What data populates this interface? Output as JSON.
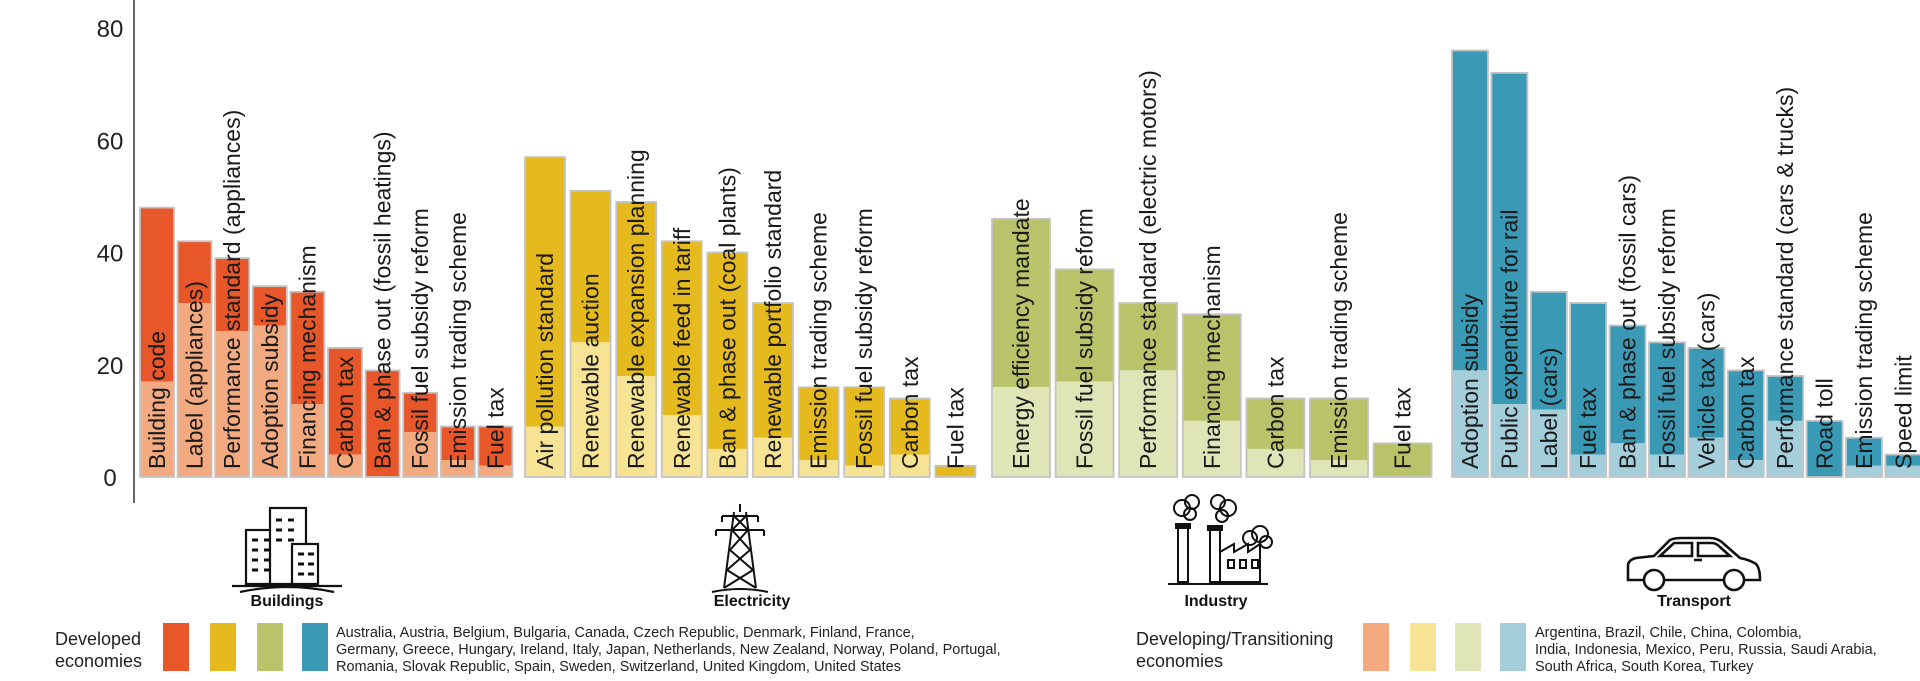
{
  "chart_data": {
    "type": "bar",
    "stacked": true,
    "ylim": [
      0,
      80
    ],
    "yticks": [
      0,
      20,
      40,
      60,
      80
    ],
    "grid": false,
    "series": [
      {
        "name": "Developed economies"
      },
      {
        "name": "Developing/Transitioning economies"
      }
    ],
    "sectors": [
      {
        "name": "Buildings",
        "icon": "buildings-icon",
        "dev_color": "#e8572a",
        "devl_color": "#f3aa80",
        "bars": [
          {
            "label": "Building code",
            "total": 48,
            "developing": 17
          },
          {
            "label": "Label (appliances)",
            "total": 42,
            "developing": 31
          },
          {
            "label": "Performance standard (appliances)",
            "total": 39,
            "developing": 26
          },
          {
            "label": "Adoption subsidy",
            "total": 34,
            "developing": 27
          },
          {
            "label": "Financing mechanism",
            "total": 33,
            "developing": 13
          },
          {
            "label": "Carbon tax",
            "total": 23,
            "developing": 4
          },
          {
            "label": "Ban & phase out (fossil heatings)",
            "total": 19,
            "developing": 0
          },
          {
            "label": "Fossil fuel subsidy reform",
            "total": 15,
            "developing": 8
          },
          {
            "label": "Emission trading scheme",
            "total": 9,
            "developing": 3
          },
          {
            "label": "Fuel tax",
            "total": 9,
            "developing": 2
          }
        ]
      },
      {
        "name": "Electricity",
        "icon": "power-pylon-icon",
        "dev_color": "#e5ba1f",
        "devl_color": "#f6e394",
        "bars": [
          {
            "label": "Air pollution standard",
            "total": 57,
            "developing": 9
          },
          {
            "label": "Renewable auction",
            "total": 51,
            "developing": 24
          },
          {
            "label": "Renewable expansion planning",
            "total": 49,
            "developing": 18
          },
          {
            "label": "Renewable feed in tariff",
            "total": 42,
            "developing": 11
          },
          {
            "label": "Ban & phase out (coal plants)",
            "total": 40,
            "developing": 5
          },
          {
            "label": "Renewable portfolio standard",
            "total": 31,
            "developing": 7
          },
          {
            "label": "Emission trading scheme",
            "total": 16,
            "developing": 3
          },
          {
            "label": "Fossil fuel subsidy reform",
            "total": 16,
            "developing": 2
          },
          {
            "label": "Carbon tax",
            "total": 14,
            "developing": 4
          },
          {
            "label": "Fuel tax",
            "total": 2,
            "developing": 0
          }
        ]
      },
      {
        "name": "Industry",
        "icon": "factory-icon",
        "dev_color": "#b9c46a",
        "devl_color": "#dfe5b7",
        "bars": [
          {
            "label": "Energy efficiency mandate",
            "total": 46,
            "developing": 16
          },
          {
            "label": "Fossil fuel subsidy reform",
            "total": 37,
            "developing": 17
          },
          {
            "label": "Performance standard (electric motors)",
            "total": 31,
            "developing": 19
          },
          {
            "label": "Financing mechanism",
            "total": 29,
            "developing": 10
          },
          {
            "label": "Carbon tax",
            "total": 14,
            "developing": 5
          },
          {
            "label": "Emission trading scheme",
            "total": 14,
            "developing": 3
          },
          {
            "label": "Fuel tax",
            "total": 6,
            "developing": 0
          }
        ]
      },
      {
        "name": "Transport",
        "icon": "car-icon",
        "dev_color": "#3a9ab5",
        "devl_color": "#a5cedb",
        "bars": [
          {
            "label": "Adoption subsidy",
            "total": 76,
            "developing": 19
          },
          {
            "label": "Public expenditure for rail",
            "total": 72,
            "developing": 13
          },
          {
            "label": "Label (cars)",
            "total": 33,
            "developing": 12
          },
          {
            "label": "Fuel tax",
            "total": 31,
            "developing": 4
          },
          {
            "label": "Ban & phase out (fossil cars)",
            "total": 27,
            "developing": 6
          },
          {
            "label": "Fossil fuel subsidy reform",
            "total": 24,
            "developing": 4
          },
          {
            "label": "Vehicle tax (cars)",
            "total": 23,
            "developing": 7
          },
          {
            "label": "Carbon tax",
            "total": 19,
            "developing": 3
          },
          {
            "label": "Performance standard (cars & trucks)",
            "total": 18,
            "developing": 10
          },
          {
            "label": "Road toll",
            "total": 10,
            "developing": 0
          },
          {
            "label": "Emission trading scheme",
            "total": 7,
            "developing": 2
          },
          {
            "label": "Speed limit",
            "total": 4,
            "developing": 2
          }
        ]
      }
    ],
    "legend": {
      "developed": {
        "label_lines": [
          "Developed",
          "economies"
        ],
        "countries_lines": [
          "Australia, Austria, Belgium, Bulgaria, Canada, Czech Republic, Denmark, Finland, France,",
          "Germany, Greece, Hungary, Ireland, Italy, Japan, Netherlands, New Zealand, Norway, Poland, Portugal,",
          "Romania, Slovak Republic, Spain, Sweden, Switzerland, United Kingdom, United States"
        ]
      },
      "developing": {
        "label_lines": [
          "Developing/Transitioning",
          "economies"
        ],
        "countries_lines": [
          "Argentina, Brazil, Chile, China, Colombia,",
          "India, Indonesia, Mexico, Peru, Russia, Saudi Arabia,",
          "South Africa, South Korea, Turkey"
        ]
      }
    }
  }
}
